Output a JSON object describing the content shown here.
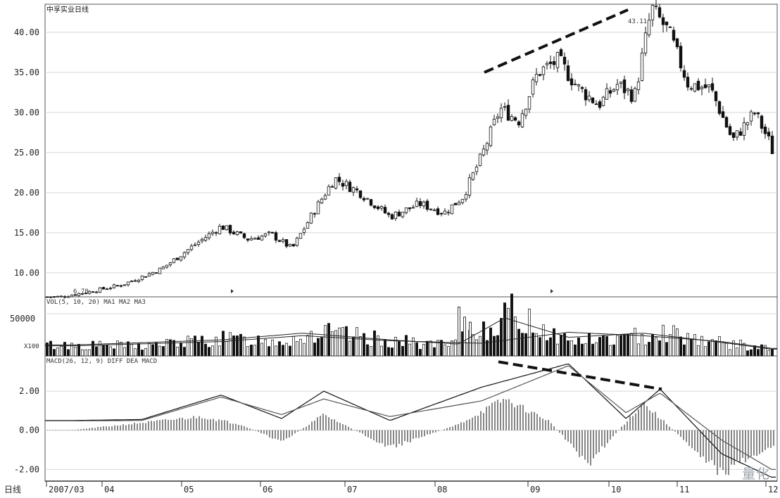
{
  "chart_data": [
    {
      "type": "candlestick",
      "title": "中孚实业日线",
      "ylim": [
        7,
        43.5
      ],
      "yticks": [
        "10.00",
        "15.00",
        "20.00",
        "25.00",
        "30.00",
        "35.00",
        "40.00"
      ],
      "annotations": {
        "low_label": "6.78",
        "high_label": "43.11"
      },
      "close_path": [
        {
          "x": "2007-03",
          "y": 7.0
        },
        {
          "x": "2007-03",
          "y": 7.6
        },
        {
          "x": "2007-04",
          "y": 8.5
        },
        {
          "x": "2007-04",
          "y": 10.5
        },
        {
          "x": "2007-05",
          "y": 13.5
        },
        {
          "x": "2007-05",
          "y": 15.8
        },
        {
          "x": "2007-05",
          "y": 14.2
        },
        {
          "x": "2007-06",
          "y": 14.8
        },
        {
          "x": "2007-06",
          "y": 13.0
        },
        {
          "x": "2007-06",
          "y": 17.5
        },
        {
          "x": "2007-06",
          "y": 21.8
        },
        {
          "x": "2007-07",
          "y": 20.0
        },
        {
          "x": "2007-07",
          "y": 17.0
        },
        {
          "x": "2007-07",
          "y": 18.6
        },
        {
          "x": "2007-08",
          "y": 17.5
        },
        {
          "x": "2007-08",
          "y": 19.5
        },
        {
          "x": "2007-08",
          "y": 24.5
        },
        {
          "x": "2007-08",
          "y": 30.5
        },
        {
          "x": "2007-08",
          "y": 29.0
        },
        {
          "x": "2007-09",
          "y": 35.0
        },
        {
          "x": "2007-09",
          "y": 36.5
        },
        {
          "x": "2007-09",
          "y": 33.0
        },
        {
          "x": "2007-09",
          "y": 31.0
        },
        {
          "x": "2007-10",
          "y": 33.5
        },
        {
          "x": "2007-10",
          "y": 32.0
        },
        {
          "x": "2007-10",
          "y": 43.0
        },
        {
          "x": "2007-10",
          "y": 40.0
        },
        {
          "x": "2007-11",
          "y": 33.5
        },
        {
          "x": "2007-11",
          "y": 33.0
        },
        {
          "x": "2007-11",
          "y": 26.5
        },
        {
          "x": "2007-11",
          "y": 30.0
        },
        {
          "x": "2007-12",
          "y": 26.5
        },
        {
          "x": "2007-12",
          "y": 24.5
        }
      ]
    },
    {
      "type": "bar",
      "title": "VOL(5, 10, 20) MA1 MA2 MA3",
      "yticks": [
        "50000"
      ],
      "unit_label": "X100",
      "ylim": [
        0,
        70000
      ],
      "volume_profile": [
        {
          "x": "2007-03",
          "y": 14000
        },
        {
          "x": "2007-04",
          "y": 13000
        },
        {
          "x": "2007-05",
          "y": 22000
        },
        {
          "x": "2007-06",
          "y": 20000
        },
        {
          "x": "2007-06",
          "y": 30000
        },
        {
          "x": "2007-07",
          "y": 20000
        },
        {
          "x": "2007-08",
          "y": 13000
        },
        {
          "x": "2007-08",
          "y": 35000
        },
        {
          "x": "2007-08",
          "y": 55000
        },
        {
          "x": "2007-09",
          "y": 20000
        },
        {
          "x": "2007-10",
          "y": 22000
        },
        {
          "x": "2007-10",
          "y": 33000
        },
        {
          "x": "2007-11",
          "y": 17000
        },
        {
          "x": "2007-12",
          "y": 9000
        }
      ],
      "ma_lines": [
        [
          {
            "x": "2007-03",
            "y": 13000
          },
          {
            "x": "2007-05",
            "y": 19000
          },
          {
            "x": "2007-06",
            "y": 27000
          },
          {
            "x": "2007-07",
            "y": 19000
          },
          {
            "x": "2007-08",
            "y": 14000
          },
          {
            "x": "2007-08",
            "y": 45000
          },
          {
            "x": "2007-09",
            "y": 22000
          },
          {
            "x": "2007-10",
            "y": 27000
          },
          {
            "x": "2007-11",
            "y": 16000
          },
          {
            "x": "2007-12",
            "y": 8000
          }
        ],
        [
          {
            "x": "2007-03",
            "y": 12000
          },
          {
            "x": "2007-05",
            "y": 17000
          },
          {
            "x": "2007-06",
            "y": 24000
          },
          {
            "x": "2007-07",
            "y": 18000
          },
          {
            "x": "2007-08",
            "y": 15000
          },
          {
            "x": "2007-09",
            "y": 28000
          },
          {
            "x": "2007-10",
            "y": 24000
          },
          {
            "x": "2007-11",
            "y": 17000
          },
          {
            "x": "2007-12",
            "y": 9000
          }
        ]
      ]
    },
    {
      "type": "line",
      "title": "MACD(26, 12, 9) DIFF DEA MACD",
      "yticks": [
        "2.00",
        "0.00",
        "-2.00"
      ],
      "ylim": [
        -2.6,
        3.8
      ],
      "xlabels": [
        "2007/03",
        "04",
        "05",
        "06",
        "07",
        "08",
        "09",
        "10",
        "11",
        "12"
      ],
      "series": [
        {
          "values": [
            {
              "x": "2007-03",
              "y": 0.5
            },
            {
              "x": "2007-04",
              "y": 0.55
            },
            {
              "x": "2007-05",
              "y": 1.8
            },
            {
              "x": "2007-06",
              "y": 0.6
            },
            {
              "x": "2007-06",
              "y": 2.0
            },
            {
              "x": "2007-07",
              "y": 0.5
            },
            {
              "x": "2007-08",
              "y": 2.2
            },
            {
              "x": "2007-09",
              "y": 3.4
            },
            {
              "x": "2007-10",
              "y": 0.6
            },
            {
              "x": "2007-10",
              "y": 2.1
            },
            {
              "x": "2007-11",
              "y": -1.2
            },
            {
              "x": "2007-12",
              "y": -2.4
            }
          ]
        },
        {
          "values": [
            {
              "x": "2007-03",
              "y": 0.48
            },
            {
              "x": "2007-04",
              "y": 0.5
            },
            {
              "x": "2007-05",
              "y": 1.7
            },
            {
              "x": "2007-06",
              "y": 0.8
            },
            {
              "x": "2007-06",
              "y": 1.6
            },
            {
              "x": "2007-07",
              "y": 0.7
            },
            {
              "x": "2007-08",
              "y": 1.5
            },
            {
              "x": "2007-09",
              "y": 3.3
            },
            {
              "x": "2007-10",
              "y": 0.9
            },
            {
              "x": "2007-10",
              "y": 1.9
            },
            {
              "x": "2007-11",
              "y": -0.5
            },
            {
              "x": "2007-12",
              "y": -2.0
            }
          ]
        }
      ],
      "histogram_profile": [
        {
          "x": "2007-03",
          "y": 0.02
        },
        {
          "x": "2007-05",
          "y": 0.7
        },
        {
          "x": "2007-05",
          "y": 0.3
        },
        {
          "x": "2007-06",
          "y": -0.6
        },
        {
          "x": "2007-06",
          "y": 0.8
        },
        {
          "x": "2007-07",
          "y": -0.9
        },
        {
          "x": "2007-08",
          "y": 0.3
        },
        {
          "x": "2007-08",
          "y": 1.6
        },
        {
          "x": "2007-09",
          "y": 0.5
        },
        {
          "x": "2007-09",
          "y": -1.7
        },
        {
          "x": "2007-10",
          "y": 1.4
        },
        {
          "x": "2007-11",
          "y": -2.2
        },
        {
          "x": "2007-12",
          "y": -0.8
        }
      ],
      "trendline": [
        {
          "x": "2007-09",
          "y": 3.5
        },
        {
          "x": "2007-10",
          "y": 2.1
        }
      ]
    }
  ],
  "price_trendline": [
    {
      "x": "2007-09",
      "y": 35.0
    },
    {
      "x": "2007-10",
      "y": 42.8
    }
  ],
  "footer": {
    "left_label": "日线"
  },
  "watermark": "量化"
}
